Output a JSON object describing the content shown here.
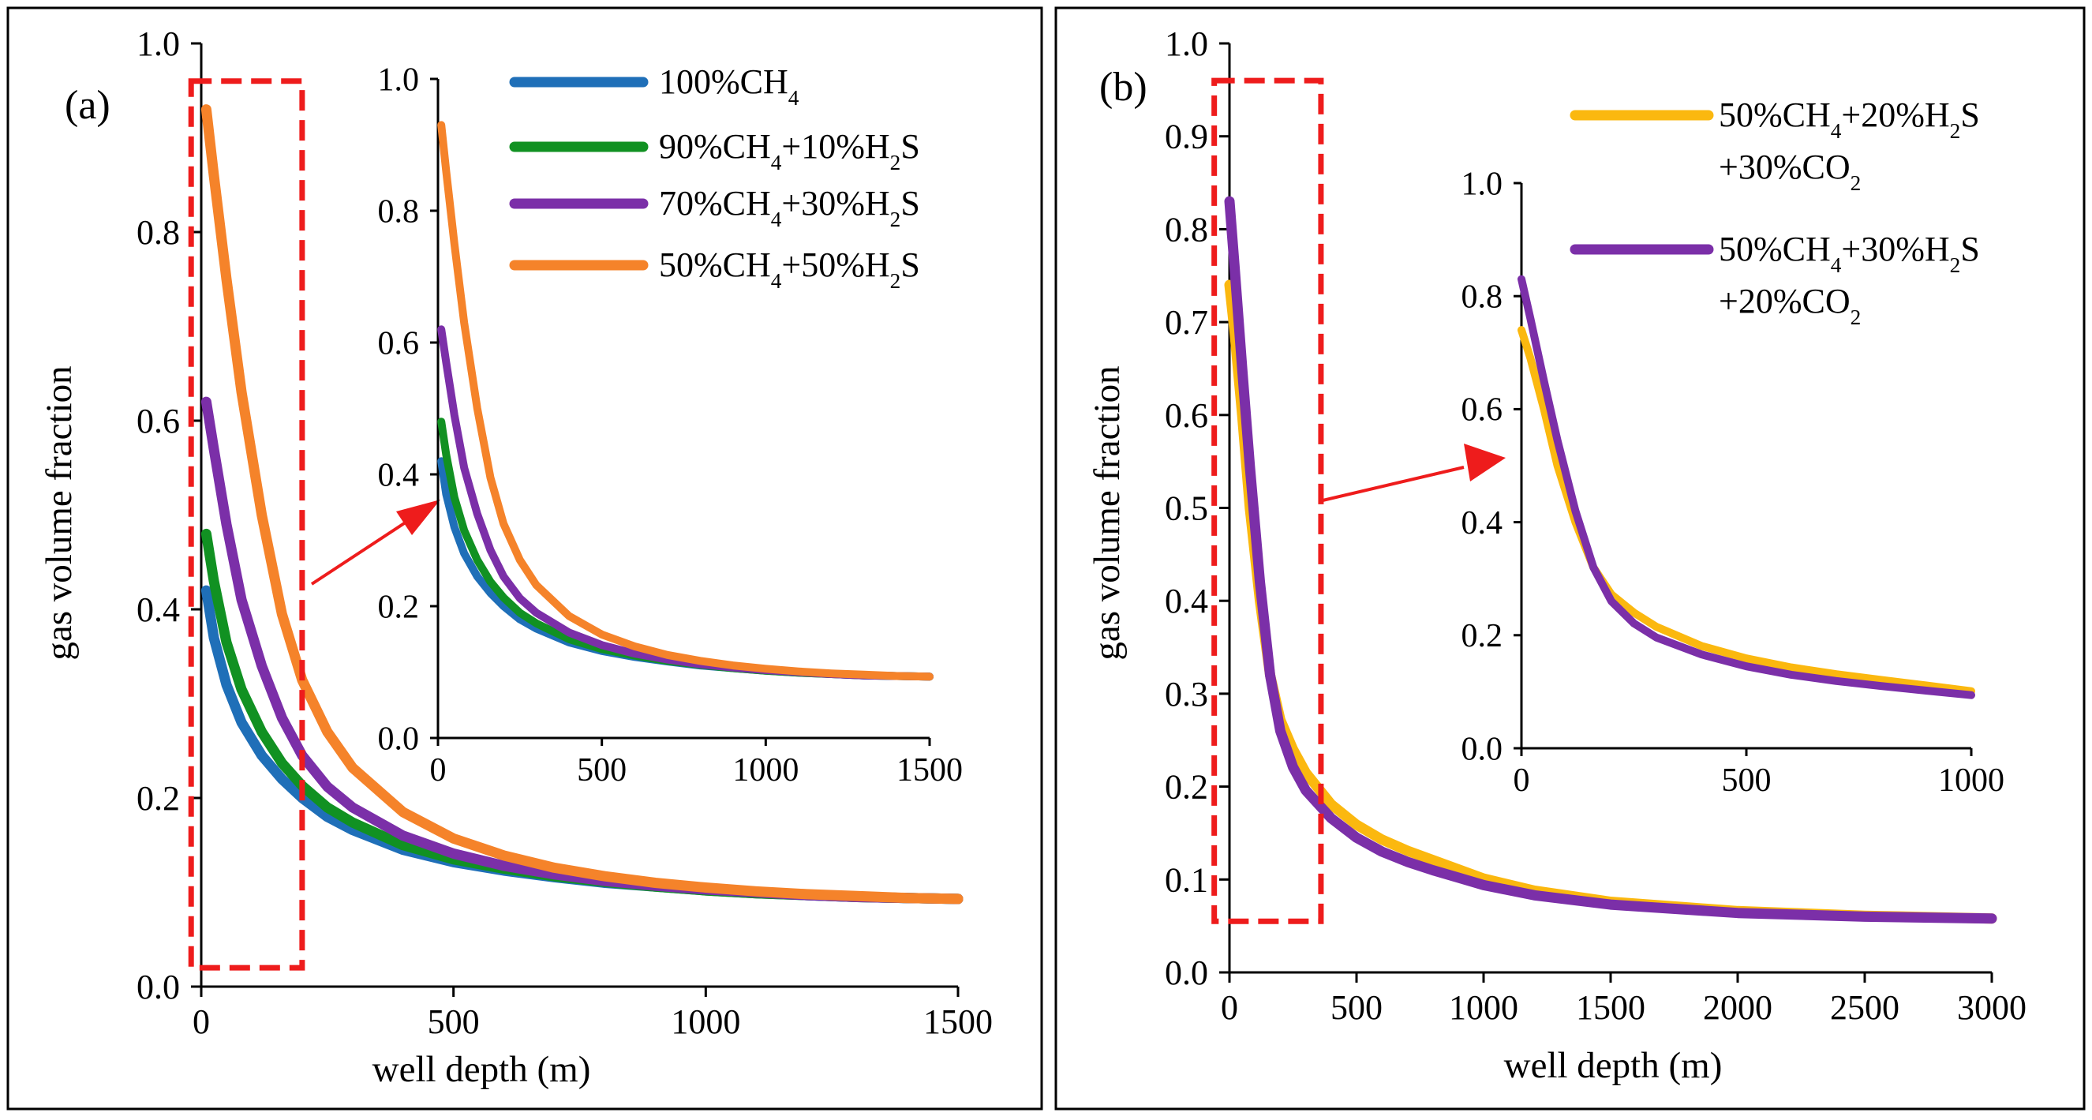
{
  "chart_data": [
    {
      "panel_label": "(a)",
      "type": "line",
      "xlabel": "well depth (m)",
      "ylabel": "gas volume fraction",
      "xlim": [
        0,
        1500
      ],
      "ylim": [
        0,
        1.0
      ],
      "xticks": [
        "0",
        "500",
        "1000",
        "1500"
      ],
      "yticks": [
        "0.0",
        "0.2",
        "0.4",
        "0.6",
        "0.8",
        "1.0"
      ],
      "zoom_region": {
        "x": [
          -20,
          200
        ],
        "y": [
          0.02,
          0.96
        ]
      },
      "legend": "top-right",
      "inset": {
        "xlim": [
          0,
          1500
        ],
        "ylim": [
          0,
          1.0
        ],
        "xticks": [
          "0",
          "500",
          "1000",
          "1500"
        ],
        "yticks": [
          "0.0",
          "0.2",
          "0.4",
          "0.6",
          "0.8",
          "1.0"
        ]
      },
      "series": [
        {
          "name": "100%CH4",
          "label_main": "100%CH",
          "label_sub": "4",
          "label_tail": "",
          "color": "#1f6fb8",
          "x": [
            10,
            25,
            50,
            80,
            120,
            160,
            200,
            250,
            300,
            400,
            500,
            600,
            700,
            800,
            900,
            1000,
            1100,
            1200,
            1300,
            1400,
            1500
          ],
          "y": [
            0.42,
            0.37,
            0.32,
            0.28,
            0.245,
            0.22,
            0.2,
            0.18,
            0.166,
            0.145,
            0.132,
            0.123,
            0.116,
            0.11,
            0.106,
            0.102,
            0.099,
            0.097,
            0.095,
            0.094,
            0.093
          ]
        },
        {
          "name": "90%CH4+10%H2S",
          "label_main": "90%CH",
          "label_sub": "4",
          "label_tail": "+10%H",
          "label_sub2": "2",
          "label_tail2": "S",
          "color": "#119122",
          "x": [
            10,
            25,
            50,
            80,
            120,
            160,
            200,
            250,
            300,
            400,
            500,
            600,
            700,
            800,
            900,
            1000,
            1100,
            1200,
            1300,
            1400,
            1500
          ],
          "y": [
            0.48,
            0.43,
            0.365,
            0.315,
            0.27,
            0.237,
            0.213,
            0.19,
            0.174,
            0.15,
            0.135,
            0.125,
            0.117,
            0.111,
            0.106,
            0.102,
            0.099,
            0.097,
            0.095,
            0.094,
            0.093
          ]
        },
        {
          "name": "70%CH4+30%H2S",
          "label_main": "70%CH",
          "label_sub": "4",
          "label_tail": "+30%H",
          "label_sub2": "2",
          "label_tail2": "S",
          "color": "#7b2fa8",
          "x": [
            10,
            25,
            50,
            80,
            120,
            160,
            200,
            250,
            300,
            400,
            500,
            600,
            700,
            800,
            900,
            1000,
            1100,
            1200,
            1300,
            1400,
            1500
          ],
          "y": [
            0.62,
            0.57,
            0.49,
            0.41,
            0.34,
            0.285,
            0.245,
            0.212,
            0.19,
            0.16,
            0.141,
            0.128,
            0.119,
            0.112,
            0.107,
            0.103,
            0.1,
            0.097,
            0.095,
            0.094,
            0.093
          ]
        },
        {
          "name": "50%CH4+50%H2S",
          "label_main": "50%CH",
          "label_sub": "4",
          "label_tail": "+50%H",
          "label_sub2": "2",
          "label_tail2": "S",
          "color": "#f5832a",
          "x": [
            10,
            25,
            50,
            80,
            120,
            160,
            200,
            250,
            300,
            400,
            500,
            600,
            700,
            800,
            900,
            1000,
            1100,
            1200,
            1300,
            1400,
            1500
          ],
          "y": [
            0.93,
            0.86,
            0.75,
            0.63,
            0.5,
            0.395,
            0.325,
            0.27,
            0.232,
            0.185,
            0.157,
            0.139,
            0.126,
            0.117,
            0.11,
            0.105,
            0.101,
            0.098,
            0.096,
            0.094,
            0.093
          ]
        }
      ]
    },
    {
      "panel_label": "(b)",
      "type": "line",
      "xlabel": "well depth (m)",
      "ylabel": "gas volume fraction",
      "xlim": [
        0,
        3000
      ],
      "ylim": [
        0,
        1.0
      ],
      "xticks": [
        "0",
        "500",
        "1000",
        "1500",
        "2000",
        "2500",
        "3000"
      ],
      "yticks": [
        "0.0",
        "0.1",
        "0.2",
        "0.3",
        "0.4",
        "0.5",
        "0.6",
        "0.7",
        "0.8",
        "0.9",
        "1.0"
      ],
      "zoom_region": {
        "x": [
          -60,
          360
        ],
        "y": [
          0.055,
          0.96
        ]
      },
      "legend": "top-right",
      "inset": {
        "xlim": [
          0,
          1000
        ],
        "ylim": [
          0,
          1.0
        ],
        "xticks": [
          "0",
          "500",
          "1000"
        ],
        "yticks": [
          "0.0",
          "0.2",
          "0.4",
          "0.6",
          "0.8",
          "1.0"
        ]
      },
      "series": [
        {
          "name": "50%CH4+20%H2S+30%CO2",
          "label_main": "50%CH",
          "label_sub": "4",
          "label_tail": "+20%H",
          "label_sub2": "2",
          "label_tail2": "S",
          "line2_main": "+30%CO",
          "line2_sub": "2",
          "color": "#fbb80f",
          "x": [
            0,
            20,
            50,
            80,
            120,
            160,
            200,
            250,
            300,
            400,
            500,
            600,
            700,
            800,
            900,
            1000,
            1200,
            1500,
            2000,
            2500,
            3000
          ],
          "y": [
            0.74,
            0.69,
            0.6,
            0.5,
            0.4,
            0.32,
            0.272,
            0.24,
            0.215,
            0.181,
            0.159,
            0.143,
            0.131,
            0.121,
            0.111,
            0.101,
            0.088,
            0.076,
            0.066,
            0.061,
            0.058
          ]
        },
        {
          "name": "50%CH4+30%H2S+20%CO2",
          "label_main": "50%CH",
          "label_sub": "4",
          "label_tail": "+30%H",
          "label_sub2": "2",
          "label_tail2": "S",
          "line2_main": "+20%CO",
          "line2_sub": "2",
          "color": "#7b2fa8",
          "x": [
            0,
            20,
            50,
            80,
            120,
            160,
            200,
            250,
            300,
            400,
            500,
            600,
            700,
            800,
            900,
            1000,
            1200,
            1500,
            2000,
            2500,
            3000
          ],
          "y": [
            0.83,
            0.76,
            0.65,
            0.545,
            0.42,
            0.32,
            0.26,
            0.221,
            0.196,
            0.166,
            0.145,
            0.13,
            0.119,
            0.11,
            0.102,
            0.094,
            0.083,
            0.073,
            0.064,
            0.06,
            0.058
          ]
        }
      ]
    }
  ]
}
